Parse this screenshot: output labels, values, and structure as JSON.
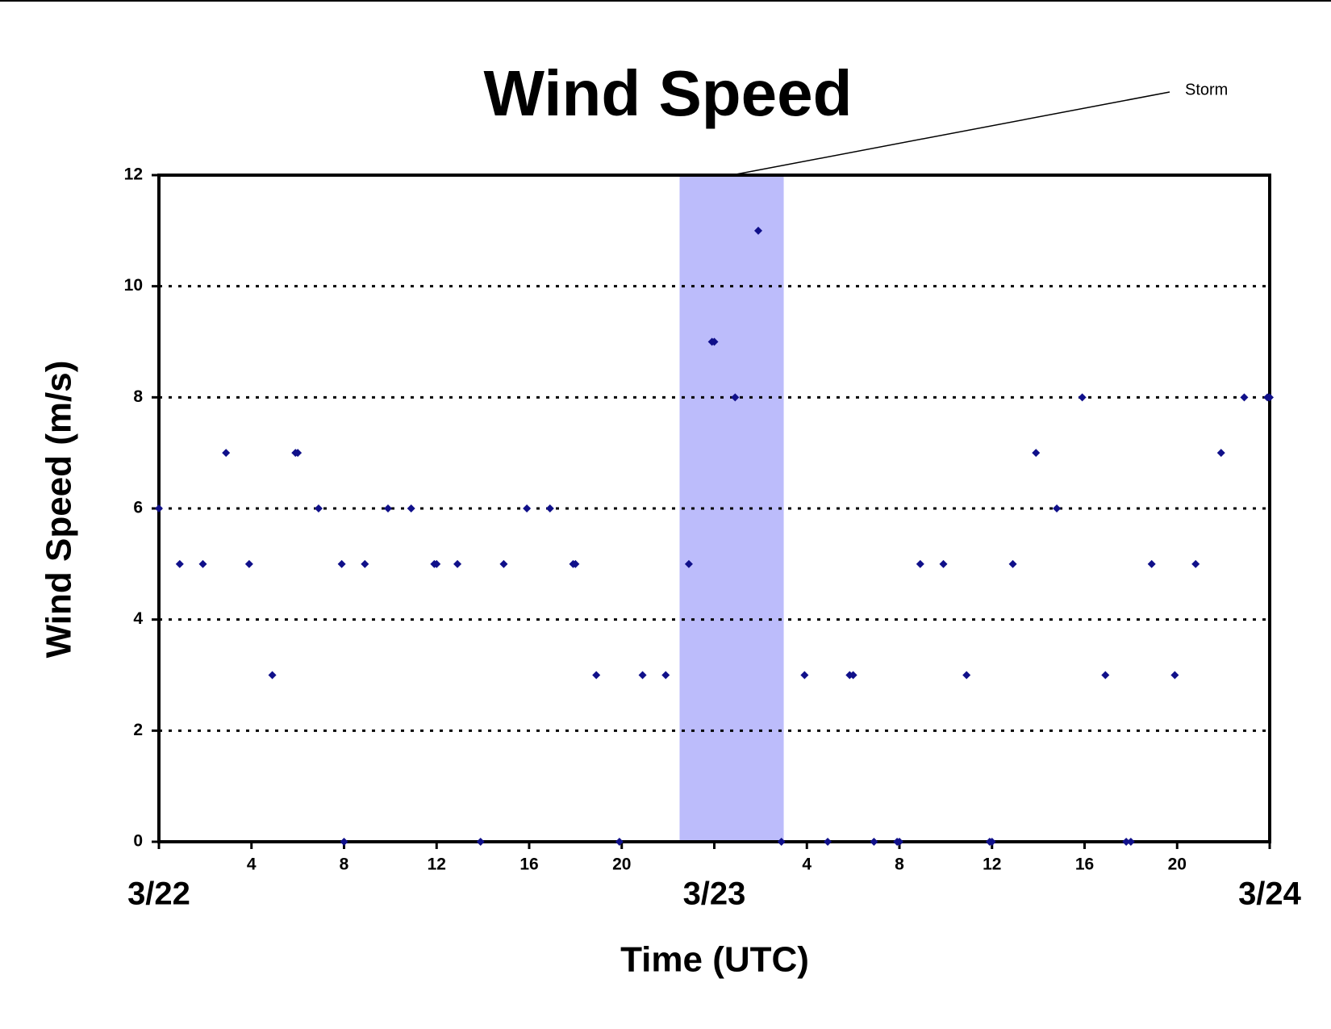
{
  "chart_data": {
    "type": "scatter",
    "title": "Wind Speed",
    "x_label": "Time (UTC)",
    "y_label": "Wind Speed (m/s)",
    "color": "#10108a",
    "shade_color": "#bcbcfb",
    "annotation": {
      "text": "Storm",
      "span": [
        22.5,
        27
      ]
    },
    "x": [
      0,
      0.9,
      1.9,
      2.9,
      3.9,
      4.9,
      5.9,
      6,
      6.9,
      7.9,
      8,
      8.9,
      9.9,
      10.9,
      11.9,
      12,
      12.9,
      13.9,
      14.9,
      15.9,
      16.9,
      17.9,
      18,
      18.9,
      19.9,
      20.9,
      21.9,
      22.9,
      23.9,
      24,
      24.9,
      25.9,
      26.9,
      27.9,
      28.9,
      29.85,
      30,
      30.9,
      31.9,
      32,
      32.9,
      33.9,
      34.9,
      35.9,
      36,
      36.9,
      37.9,
      38.8,
      39.9,
      40.9,
      41.8,
      42,
      42.9,
      43.9,
      44.8,
      45.9,
      46.9,
      47.9,
      48
    ],
    "values": [
      6,
      5,
      5,
      7,
      5,
      3,
      7,
      7,
      6,
      5,
      0,
      5,
      6,
      6,
      5,
      5,
      5,
      0,
      5,
      6,
      6,
      5,
      5,
      3,
      0,
      3,
      3,
      5,
      9,
      9,
      8,
      11,
      0,
      3,
      0,
      3,
      3,
      0,
      0,
      0,
      5,
      5,
      3,
      0,
      0,
      5,
      7,
      6,
      8,
      3,
      0,
      0,
      5,
      3,
      5,
      7,
      8,
      8,
      8
    ],
    "xlim": [
      0,
      48
    ],
    "ylim": [
      0,
      12
    ],
    "yticks": [
      0,
      2,
      4,
      6,
      8,
      10,
      12
    ],
    "grid": true,
    "xticks": [
      4,
      8,
      12,
      16,
      20,
      {
        "value": 28,
        "label": "4"
      },
      {
        "value": 32,
        "label": "8"
      },
      {
        "value": 36,
        "label": "12"
      },
      {
        "value": 40,
        "label": "16"
      },
      {
        "value": 44,
        "label": "20"
      }
    ],
    "date_ticks": [
      {
        "value": 0,
        "label": "3/22"
      },
      {
        "value": 24,
        "label": "3/23"
      },
      {
        "value": 48,
        "label": "3/24"
      }
    ]
  }
}
